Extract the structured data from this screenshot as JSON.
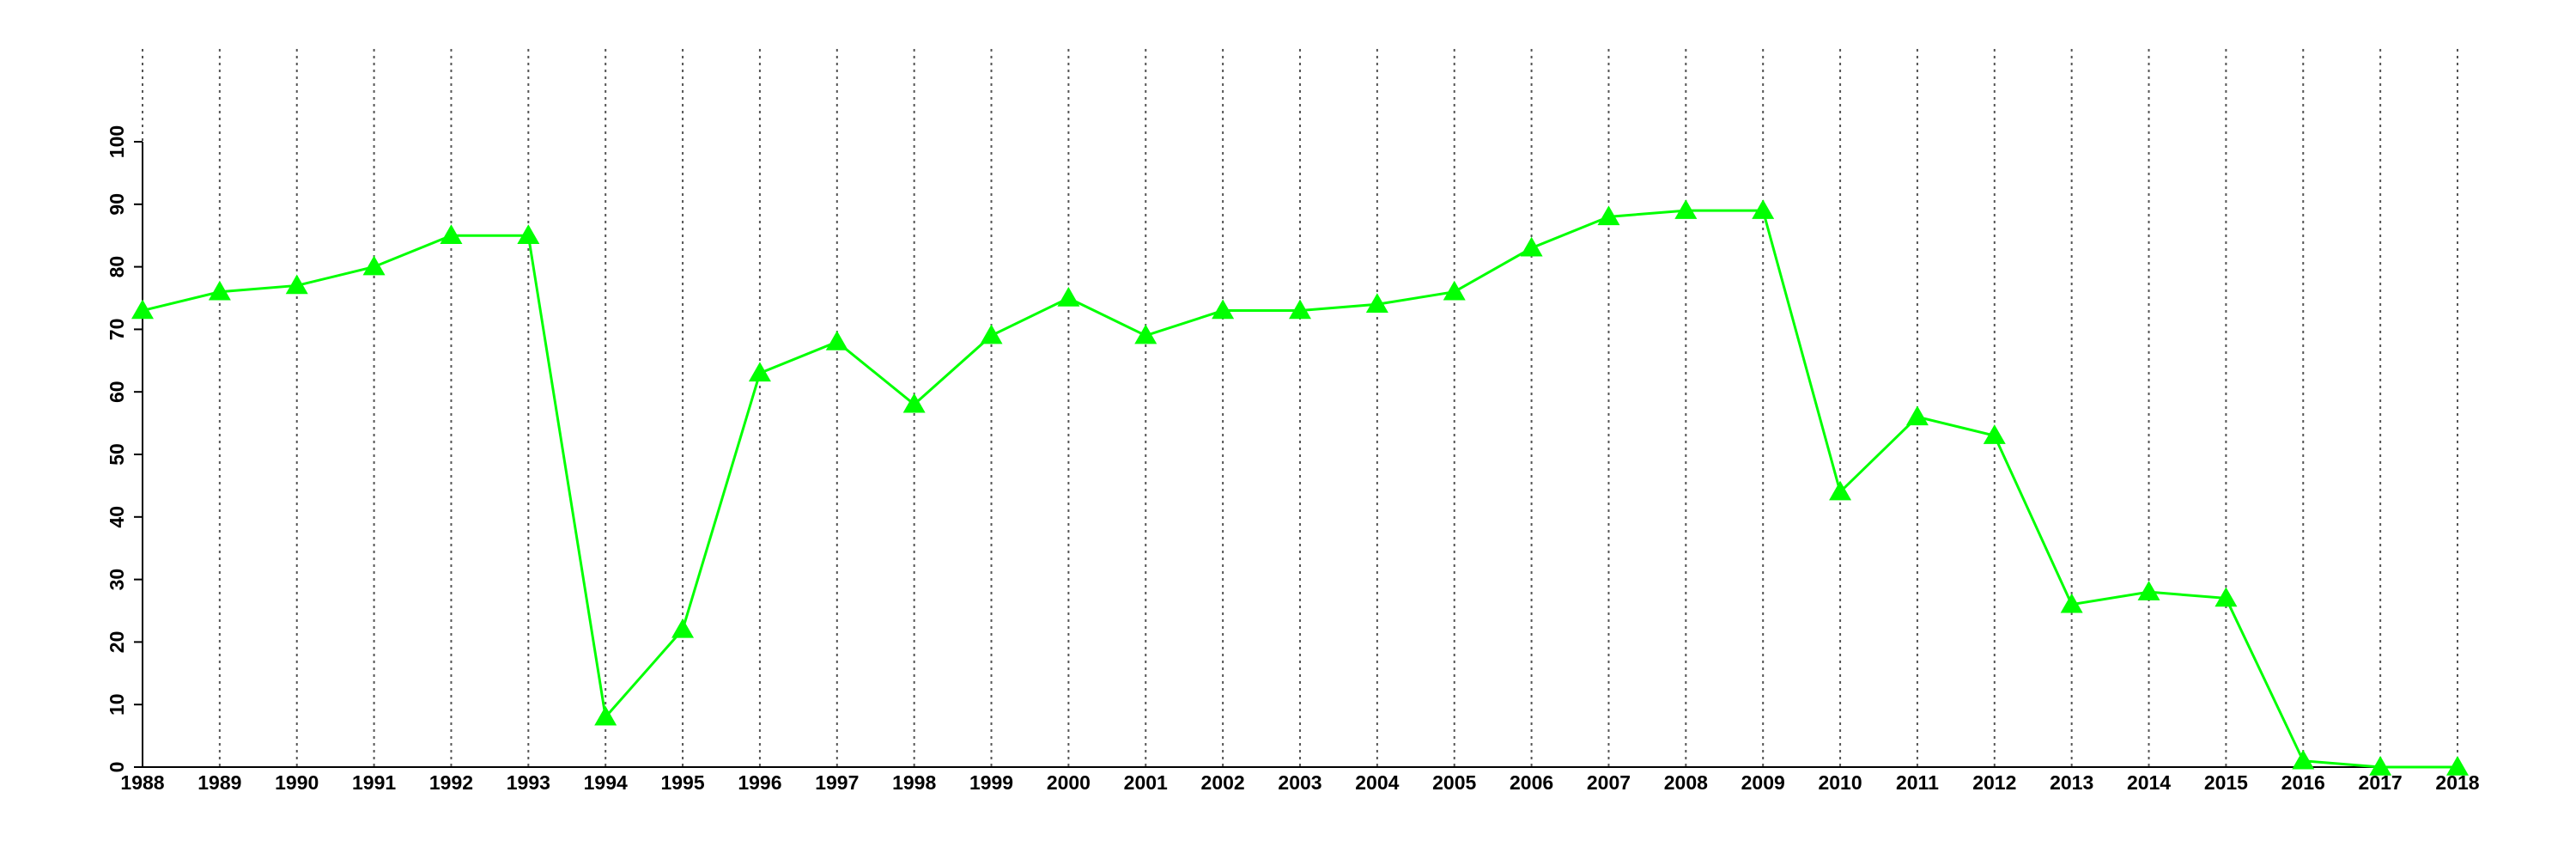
{
  "chart_data": {
    "type": "line",
    "x": [
      1988,
      1989,
      1990,
      1991,
      1992,
      1993,
      1994,
      1995,
      1996,
      1997,
      1998,
      1999,
      2000,
      2001,
      2002,
      2003,
      2004,
      2005,
      2006,
      2007,
      2008,
      2009,
      2010,
      2011,
      2012,
      2013,
      2014,
      2015,
      2016,
      2017,
      2018
    ],
    "series": [
      {
        "color": "#00ff00",
        "values": [
          73,
          76,
          77,
          80,
          85,
          85,
          8,
          22,
          63,
          68,
          58,
          69,
          75,
          69,
          73,
          73,
          74,
          76,
          83,
          88,
          89,
          89,
          44,
          56,
          53,
          26,
          28,
          27,
          1,
          0,
          0
        ]
      }
    ],
    "xlim": [
      1988,
      2018
    ],
    "xticks": [
      1988,
      1989,
      1990,
      1991,
      1992,
      1993,
      1994,
      1995,
      1996,
      1997,
      1998,
      1999,
      2000,
      2001,
      2002,
      2003,
      2004,
      2005,
      2006,
      2007,
      2008,
      2009,
      2010,
      2011,
      2012,
      2013,
      2014,
      2015,
      2016,
      2017,
      2018
    ],
    "ylim": [
      0,
      100
    ],
    "yticks": [
      0,
      10,
      20,
      30,
      40,
      50,
      60,
      70,
      80,
      90,
      100
    ],
    "grid": true,
    "marker": "triangle"
  }
}
